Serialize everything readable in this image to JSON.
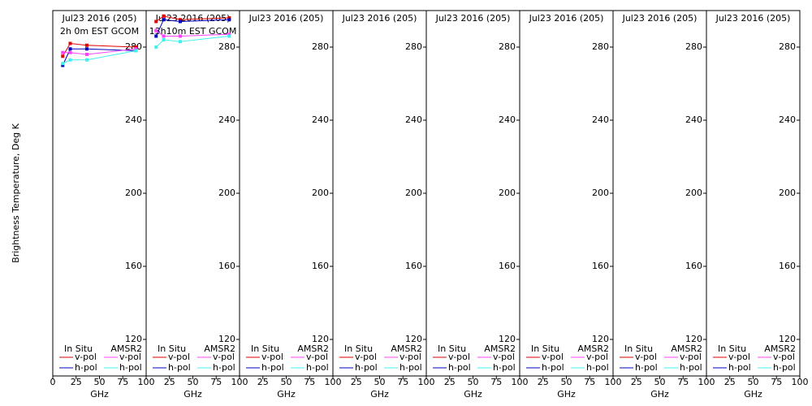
{
  "chart_data": [
    {
      "type": "line",
      "title": "Jul23 2016 (205)",
      "subtitle": "2h 0m EST GCOM",
      "x_label": "GHz",
      "y_label": "Brightness Temperature, Deg K",
      "xlim": [
        0,
        100
      ],
      "xticks": [
        0,
        25,
        50,
        75,
        100
      ],
      "ylim": [
        100,
        300
      ],
      "yticks": [
        120,
        160,
        200,
        240,
        280
      ],
      "x": [
        10.65,
        18.7,
        36.5,
        89
      ],
      "series": [
        {
          "group": "In Situ",
          "name": "v-pol",
          "color": "#e00000",
          "values": [
            275,
            282,
            281,
            280
          ]
        },
        {
          "group": "In Situ",
          "name": "h-pol",
          "color": "#0000c0",
          "values": [
            270,
            279,
            279,
            278
          ]
        },
        {
          "group": "AMSR2",
          "name": "v-pol",
          "color": "#ff40ff",
          "values": [
            277,
            277,
            276,
            279
          ]
        },
        {
          "group": "AMSR2",
          "name": "h-pol",
          "color": "#40f0f0",
          "values": [
            271,
            273,
            273,
            278
          ]
        }
      ]
    },
    {
      "type": "line",
      "title": "Jul23 2016 (205)",
      "subtitle": "13h10m EST GCOM",
      "x_label": "GHz",
      "xlim": [
        0,
        100
      ],
      "xticks": [
        25,
        50,
        75,
        100
      ],
      "ylim": [
        100,
        300
      ],
      "yticks": [
        120,
        160,
        200,
        240,
        280
      ],
      "x": [
        10.65,
        18.7,
        36.5,
        89
      ],
      "series": [
        {
          "group": "In Situ",
          "name": "v-pol",
          "color": "#e00000",
          "values": [
            294,
            297,
            295,
            296
          ]
        },
        {
          "group": "In Situ",
          "name": "h-pol",
          "color": "#0000c0",
          "values": [
            286,
            295,
            294,
            295
          ]
        },
        {
          "group": "AMSR2",
          "name": "v-pol",
          "color": "#ff40ff",
          "values": [
            289,
            286,
            286,
            287
          ]
        },
        {
          "group": "AMSR2",
          "name": "h-pol",
          "color": "#40f0f0",
          "values": [
            280,
            284,
            283,
            286
          ]
        }
      ]
    },
    {
      "type": "line",
      "title": "Jul23 2016 (205)",
      "x_label": "GHz",
      "xlim": [
        0,
        100
      ],
      "xticks": [
        25,
        50,
        75,
        100
      ],
      "ylim": [
        100,
        300
      ],
      "yticks": [
        120,
        160,
        200,
        240,
        280
      ],
      "x": [],
      "series": [
        {
          "group": "In Situ",
          "name": "v-pol",
          "color": "#e00000",
          "values": []
        },
        {
          "group": "In Situ",
          "name": "h-pol",
          "color": "#0000c0",
          "values": []
        },
        {
          "group": "AMSR2",
          "name": "v-pol",
          "color": "#ff40ff",
          "values": []
        },
        {
          "group": "AMSR2",
          "name": "h-pol",
          "color": "#40f0f0",
          "values": []
        }
      ]
    },
    {
      "type": "line",
      "title": "Jul23 2016 (205)",
      "x_label": "GHz",
      "xlim": [
        0,
        100
      ],
      "xticks": [
        25,
        50,
        75,
        100
      ],
      "ylim": [
        100,
        300
      ],
      "yticks": [
        120,
        160,
        200,
        240,
        280
      ],
      "x": [],
      "series": [
        {
          "group": "In Situ",
          "name": "v-pol",
          "color": "#e00000",
          "values": []
        },
        {
          "group": "In Situ",
          "name": "h-pol",
          "color": "#0000c0",
          "values": []
        },
        {
          "group": "AMSR2",
          "name": "v-pol",
          "color": "#ff40ff",
          "values": []
        },
        {
          "group": "AMSR2",
          "name": "h-pol",
          "color": "#40f0f0",
          "values": []
        }
      ]
    },
    {
      "type": "line",
      "title": "Jul23 2016 (205)",
      "x_label": "GHz",
      "xlim": [
        0,
        100
      ],
      "xticks": [
        25,
        50,
        75,
        100
      ],
      "ylim": [
        100,
        300
      ],
      "yticks": [
        120,
        160,
        200,
        240,
        280
      ],
      "x": [],
      "series": [
        {
          "group": "In Situ",
          "name": "v-pol",
          "color": "#e00000",
          "values": []
        },
        {
          "group": "In Situ",
          "name": "h-pol",
          "color": "#0000c0",
          "values": []
        },
        {
          "group": "AMSR2",
          "name": "v-pol",
          "color": "#ff40ff",
          "values": []
        },
        {
          "group": "AMSR2",
          "name": "h-pol",
          "color": "#40f0f0",
          "values": []
        }
      ]
    },
    {
      "type": "line",
      "title": "Jul23 2016 (205)",
      "x_label": "GHz",
      "xlim": [
        0,
        100
      ],
      "xticks": [
        25,
        50,
        75,
        100
      ],
      "ylim": [
        100,
        300
      ],
      "yticks": [
        120,
        160,
        200,
        240,
        280
      ],
      "x": [],
      "series": [
        {
          "group": "In Situ",
          "name": "v-pol",
          "color": "#e00000",
          "values": []
        },
        {
          "group": "In Situ",
          "name": "h-pol",
          "color": "#0000c0",
          "values": []
        },
        {
          "group": "AMSR2",
          "name": "v-pol",
          "color": "#ff40ff",
          "values": []
        },
        {
          "group": "AMSR2",
          "name": "h-pol",
          "color": "#40f0f0",
          "values": []
        }
      ]
    },
    {
      "type": "line",
      "title": "Jul23 2016 (205)",
      "x_label": "GHz",
      "xlim": [
        0,
        100
      ],
      "xticks": [
        25,
        50,
        75,
        100
      ],
      "ylim": [
        100,
        300
      ],
      "yticks": [
        120,
        160,
        200,
        240,
        280
      ],
      "x": [],
      "series": [
        {
          "group": "In Situ",
          "name": "v-pol",
          "color": "#e00000",
          "values": []
        },
        {
          "group": "In Situ",
          "name": "h-pol",
          "color": "#0000c0",
          "values": []
        },
        {
          "group": "AMSR2",
          "name": "v-pol",
          "color": "#ff40ff",
          "values": []
        },
        {
          "group": "AMSR2",
          "name": "h-pol",
          "color": "#40f0f0",
          "values": []
        }
      ]
    },
    {
      "type": "line",
      "title": "Jul23 2016 (205)",
      "x_label": "GHz",
      "xlim": [
        0,
        100
      ],
      "xticks": [
        25,
        50,
        75,
        100
      ],
      "ylim": [
        100,
        300
      ],
      "yticks": [
        120,
        160,
        200,
        240,
        280
      ],
      "x": [],
      "series": [
        {
          "group": "In Situ",
          "name": "v-pol",
          "color": "#e00000",
          "values": []
        },
        {
          "group": "In Situ",
          "name": "h-pol",
          "color": "#0000c0",
          "values": []
        },
        {
          "group": "AMSR2",
          "name": "v-pol",
          "color": "#ff40ff",
          "values": []
        },
        {
          "group": "AMSR2",
          "name": "h-pol",
          "color": "#40f0f0",
          "values": []
        }
      ]
    }
  ]
}
